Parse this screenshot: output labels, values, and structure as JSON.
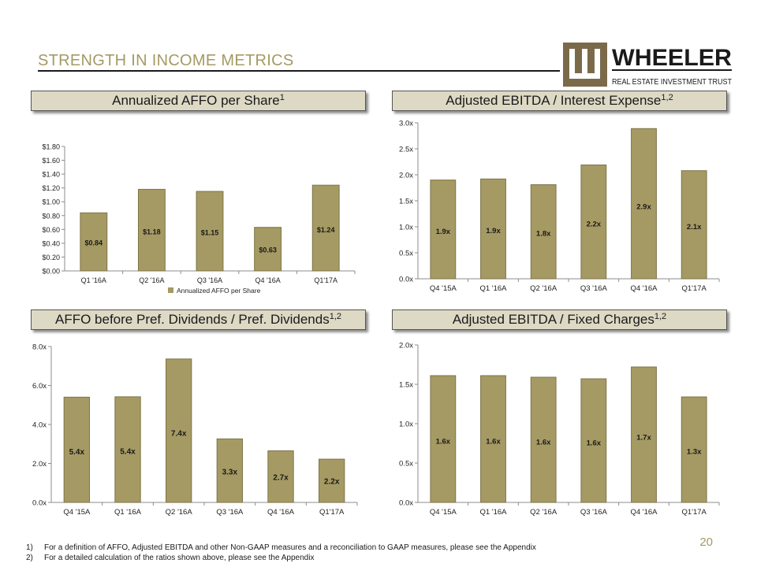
{
  "slide": {
    "title": "STRENGTH IN INCOME METRICS",
    "page_number": "20",
    "accent_color": "#a59a63",
    "bar_color": "#a59a63",
    "bar_edge_color": "#7d7448",
    "band_color": "#ddd9c4"
  },
  "logo": {
    "name": "WHEELER",
    "tagline": "REAL ESTATE INVESTMENT TRUST",
    "mark_icon": "wheeler-w-mark-icon"
  },
  "footnotes": [
    {
      "num": "1)",
      "text": "For a definition of AFFO, Adjusted EBITDA and other Non-GAAP measures and a reconciliation to GAAP measures, please see the Appendix"
    },
    {
      "num": "2)",
      "text": "For a detailed calculation of the ratios shown above, please see the Appendix"
    }
  ],
  "chart_data": [
    {
      "id": "affo",
      "type": "bar",
      "title": "Annualized AFFO per Share",
      "title_sup": "1",
      "categories": [
        "Q1 '16A",
        "Q2 '16A",
        "Q3 '16A",
        "Q4 '16A",
        "Q1'17A"
      ],
      "values": [
        0.84,
        1.18,
        1.15,
        0.63,
        1.24
      ],
      "data_labels": [
        "$0.84",
        "$1.18",
        "$1.15",
        "$0.63",
        "$1.24"
      ],
      "yticks": [
        0,
        0.2,
        0.4,
        0.6,
        0.8,
        1.0,
        1.2,
        1.4,
        1.6,
        1.8
      ],
      "ytick_labels": [
        "$0.00",
        "$0.20",
        "$0.40",
        "$0.60",
        "$0.80",
        "$1.00",
        "$1.20",
        "$1.40",
        "$1.60",
        "$1.80"
      ],
      "ylim": [
        0,
        1.8
      ],
      "legend": "Annualized AFFO per Share",
      "legend_position": "bottom",
      "xlabel": "",
      "ylabel": "",
      "grid": false
    },
    {
      "id": "ebitda-interest",
      "type": "bar",
      "title": "Adjusted EBITDA / Interest Expense",
      "title_sup": "1,2",
      "categories": [
        "Q4 '15A",
        "Q1 '16A",
        "Q2 '16A",
        "Q3 '16A",
        "Q4 '16A",
        "Q1'17A"
      ],
      "values": [
        1.9,
        1.92,
        1.81,
        2.19,
        2.89,
        2.08
      ],
      "data_labels": [
        "1.9x",
        "1.9x",
        "1.8x",
        "2.2x",
        "2.9x",
        "2.1x"
      ],
      "yticks": [
        0,
        0.5,
        1.0,
        1.5,
        2.0,
        2.5,
        3.0
      ],
      "ytick_labels": [
        "0.0x",
        "0.5x",
        "1.0x",
        "1.5x",
        "2.0x",
        "2.5x",
        "3.0x"
      ],
      "ylim": [
        0,
        3.0
      ],
      "xlabel": "",
      "ylabel": "",
      "grid": false
    },
    {
      "id": "affo-pref",
      "type": "bar",
      "title": "AFFO before Pref. Dividends / Pref. Dividends",
      "title_sup": "1,2",
      "categories": [
        "Q4 '15A",
        "Q1 '16A",
        "Q2 '16A",
        "Q3 '16A",
        "Q4 '16A",
        "Q1'17A"
      ],
      "values": [
        5.4,
        5.42,
        7.36,
        3.26,
        2.65,
        2.22
      ],
      "data_labels": [
        "5.4x",
        "5.4x",
        "7.4x",
        "3.3x",
        "2.7x",
        "2.2x"
      ],
      "yticks": [
        0,
        2,
        4,
        6,
        8
      ],
      "ytick_labels": [
        "0.0x",
        "2.0x",
        "4.0x",
        "6.0x",
        "8.0x"
      ],
      "ylim": [
        0,
        8
      ],
      "xlabel": "",
      "ylabel": "",
      "grid": false
    },
    {
      "id": "ebitda-fixed",
      "type": "bar",
      "title": "Adjusted EBITDA / Fixed Charges",
      "title_sup": "1,2",
      "categories": [
        "Q4 '15A",
        "Q1 '16A",
        "Q2 '16A",
        "Q3 '16A",
        "Q4 '16A",
        "Q1'17A"
      ],
      "values": [
        1.61,
        1.61,
        1.59,
        1.57,
        1.72,
        1.34
      ],
      "data_labels": [
        "1.6x",
        "1.6x",
        "1.6x",
        "1.6x",
        "1.7x",
        "1.3x"
      ],
      "yticks": [
        0,
        0.5,
        1.0,
        1.5,
        2.0
      ],
      "ytick_labels": [
        "0.0x",
        "0.5x",
        "1.0x",
        "1.5x",
        "2.0x"
      ],
      "ylim": [
        0,
        2.0
      ],
      "xlabel": "",
      "ylabel": "",
      "grid": false
    }
  ]
}
